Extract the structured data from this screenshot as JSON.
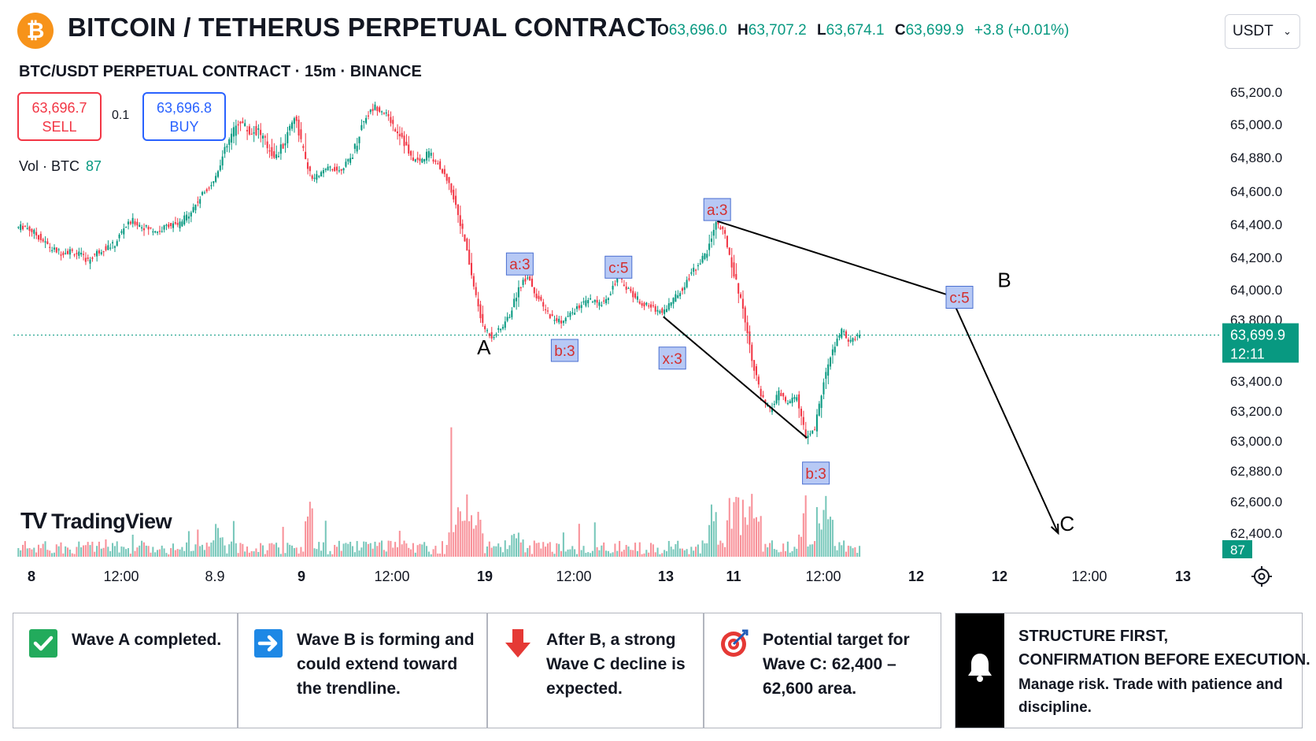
{
  "header": {
    "coin_symbol": "₿",
    "title": "BITCOIN / TETHERUS PERPETUAL CONTRACT",
    "ohlc": [
      {
        "key": "O",
        "value": "63,696.0"
      },
      {
        "key": "H",
        "value": "63,707.2"
      },
      {
        "key": "L",
        "value": "63,674.1"
      },
      {
        "key": "C",
        "value": "63,699.9"
      }
    ],
    "change": "+3.8 (+0.01%)",
    "currency": "USDT"
  },
  "subtitle": "BTC/USDT PERPETUAL CONTRACT · 15m · BINANCE",
  "trade": {
    "sell_price": "63,696.7",
    "sell_label": "SELL",
    "spread": "0.1",
    "buy_price": "63,696.8",
    "buy_label": "BUY"
  },
  "volume": {
    "label": "Vol · BTC",
    "value": "87"
  },
  "watermark": "TradingView",
  "colors": {
    "up": "#089981",
    "down": "#f23645",
    "accent": "#2962ff",
    "bitcoin": "#f7931a"
  },
  "chart_data": {
    "type": "candlestick",
    "symbol": "BTC/USDT",
    "interval": "15m",
    "y_ticks": [
      65200,
      65000,
      64880,
      64600,
      64400,
      64200,
      64000,
      63800,
      63400,
      63200,
      63000,
      62880,
      62600,
      62400
    ],
    "y_tick_labels": [
      "65,200.0",
      "65,000.0",
      "64,880.0",
      "64,600.0",
      "64,400.0",
      "64,200.0",
      "64,000.0",
      "63,800.0",
      "63,400.0",
      "63,200.0",
      "63,000.0",
      "62,880.0",
      "62,600.0",
      "62,400.0"
    ],
    "x_tick_labels": [
      "8",
      "12:00",
      "8.9",
      "9",
      "12:00",
      "19",
      "12:00",
      "13",
      "11",
      "12:00",
      "12",
      "12",
      "12:00",
      "13"
    ],
    "last_price": {
      "value": 63699.9,
      "label": "63,699.9",
      "countdown": "12:11"
    },
    "volume_last": {
      "value": 87,
      "label": "87"
    },
    "price_path": [
      [
        0,
        64380
      ],
      [
        1,
        64390
      ],
      [
        2,
        64350
      ],
      [
        3,
        64300
      ],
      [
        4,
        64250
      ],
      [
        5,
        64230
      ],
      [
        6,
        64240
      ],
      [
        7,
        64220
      ],
      [
        8,
        64180
      ],
      [
        9,
        64230
      ],
      [
        10,
        64260
      ],
      [
        11,
        64280
      ],
      [
        12,
        64380
      ],
      [
        13,
        64420
      ],
      [
        14,
        64390
      ],
      [
        15,
        64370
      ],
      [
        16,
        64360
      ],
      [
        17,
        64400
      ],
      [
        18,
        64390
      ],
      [
        19,
        64450
      ],
      [
        20,
        64520
      ],
      [
        21,
        64600
      ],
      [
        22,
        64680
      ],
      [
        23,
        64880
      ],
      [
        24,
        64960
      ],
      [
        25,
        65020
      ],
      [
        26,
        64970
      ],
      [
        27,
        64980
      ],
      [
        28,
        64920
      ],
      [
        29,
        64880
      ],
      [
        30,
        64940
      ],
      [
        31,
        65050
      ],
      [
        32,
        64900
      ],
      [
        33,
        64700
      ],
      [
        34,
        64750
      ],
      [
        35,
        64800
      ],
      [
        36,
        64770
      ],
      [
        37,
        64850
      ],
      [
        38,
        64940
      ],
      [
        39,
        65050
      ],
      [
        40,
        65110
      ],
      [
        41,
        65080
      ],
      [
        42,
        65000
      ],
      [
        43,
        64960
      ],
      [
        44,
        64870
      ],
      [
        45,
        64850
      ],
      [
        46,
        64900
      ],
      [
        47,
        64830
      ],
      [
        48,
        64700
      ],
      [
        49,
        64520
      ],
      [
        50,
        64300
      ],
      [
        51,
        64020
      ],
      [
        52,
        63760
      ],
      [
        53,
        63690
      ],
      [
        54,
        63740
      ],
      [
        55,
        63830
      ],
      [
        56,
        64010
      ],
      [
        57,
        64090
      ],
      [
        58,
        63960
      ],
      [
        59,
        63860
      ],
      [
        60,
        63800
      ],
      [
        61,
        63790
      ],
      [
        62,
        63850
      ],
      [
        63,
        63900
      ],
      [
        64,
        63930
      ],
      [
        65,
        63900
      ],
      [
        66,
        63960
      ],
      [
        67,
        64080
      ],
      [
        68,
        64020
      ],
      [
        69,
        63950
      ],
      [
        70,
        63900
      ],
      [
        71,
        63880
      ],
      [
        72,
        63850
      ],
      [
        73,
        63920
      ],
      [
        74,
        63990
      ],
      [
        75,
        64080
      ],
      [
        76,
        64160
      ],
      [
        77,
        64230
      ],
      [
        78,
        64420
      ],
      [
        79,
        64330
      ],
      [
        80,
        64100
      ],
      [
        81,
        63880
      ],
      [
        82,
        63550
      ],
      [
        83,
        63300
      ],
      [
        84,
        63200
      ],
      [
        85,
        63320
      ],
      [
        86,
        63250
      ],
      [
        87,
        63300
      ],
      [
        88,
        63020
      ],
      [
        89,
        63080
      ],
      [
        90,
        63400
      ],
      [
        91,
        63600
      ],
      [
        92,
        63730
      ],
      [
        93,
        63650
      ],
      [
        94,
        63699.9
      ]
    ],
    "wave_labels": [
      {
        "text": "A",
        "boxed": false,
        "price": 63620,
        "at": 52
      },
      {
        "text": "a:3",
        "boxed": true,
        "price": 64160,
        "at": 56
      },
      {
        "text": "b:3",
        "boxed": true,
        "price": 63600,
        "at": 61
      },
      {
        "text": "c:5",
        "boxed": true,
        "price": 64140,
        "at": 67
      },
      {
        "text": "x:3",
        "boxed": true,
        "price": 63550,
        "at": 73
      },
      {
        "text": "a:3",
        "boxed": true,
        "price": 64490,
        "at": 78
      },
      {
        "text": "b:3",
        "boxed": true,
        "price": 62860,
        "at": 89
      },
      {
        "text": "c:5",
        "boxed": true,
        "price": 63950,
        "at": 105
      },
      {
        "text": "B",
        "boxed": false,
        "price": 64060,
        "at": 110
      },
      {
        "text": "C",
        "boxed": false,
        "price": 62460,
        "at": 117
      }
    ],
    "trendlines": [
      {
        "from": [
          78,
          64420
        ],
        "to": [
          104,
          63960
        ]
      },
      {
        "from": [
          72,
          63820
        ],
        "to": [
          88,
          63020
        ]
      },
      {
        "from": [
          104,
          63960
        ],
        "to": [
          116,
          62400
        ],
        "arrow": true
      }
    ]
  },
  "cards": [
    {
      "icon": "check-icon",
      "text": "Wave A completed."
    },
    {
      "icon": "arrow-right-icon",
      "text": "Wave B is forming and could extend toward the trendline."
    },
    {
      "icon": "arrow-down-icon",
      "text": "After B, a strong Wave C decline is expected."
    },
    {
      "icon": "target-icon",
      "text": "Potential target for Wave C: 62,400 – 62,600 area."
    }
  ],
  "notice": {
    "icon": "bell-icon",
    "line1": "STRUCTURE FIRST,",
    "line2": "CONFIRMATION BEFORE EXECUTION.",
    "body": "Manage risk. Trade with patience and discipline."
  }
}
